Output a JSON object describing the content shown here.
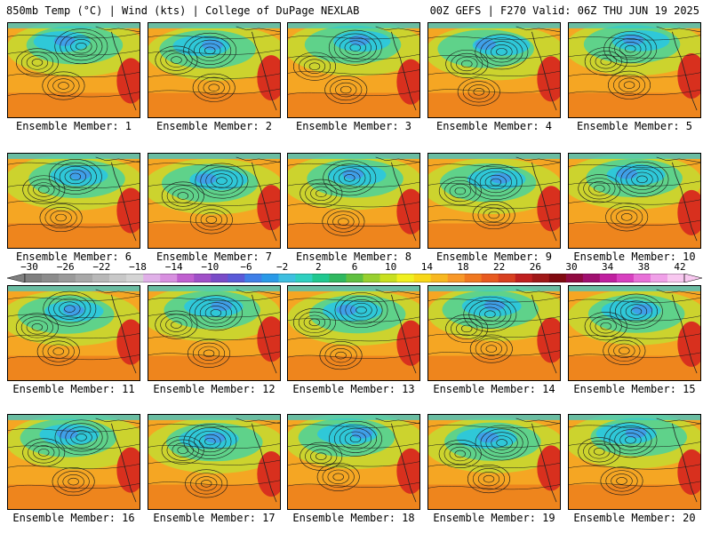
{
  "header": {
    "left": "850mb Temp (°C) | Wind (kts) | College of DuPage NEXLAB",
    "right": "00Z GEFS | F270 Valid: 06Z THU JUN 19 2025"
  },
  "panels": [
    {
      "label": "Ensemble Member: 1"
    },
    {
      "label": "Ensemble Member: 2"
    },
    {
      "label": "Ensemble Member: 3"
    },
    {
      "label": "Ensemble Member: 4"
    },
    {
      "label": "Ensemble Member: 5"
    },
    {
      "label": "Ensemble Member: 6"
    },
    {
      "label": "Ensemble Member: 7"
    },
    {
      "label": "Ensemble Member: 8"
    },
    {
      "label": "Ensemble Member: 9"
    },
    {
      "label": "Ensemble Member: 10"
    },
    {
      "label": "Ensemble Member: 11"
    },
    {
      "label": "Ensemble Member: 12"
    },
    {
      "label": "Ensemble Member: 13"
    },
    {
      "label": "Ensemble Member: 14"
    },
    {
      "label": "Ensemble Member: 15"
    },
    {
      "label": "Ensemble Member: 16"
    },
    {
      "label": "Ensemble Member: 17"
    },
    {
      "label": "Ensemble Member: 18"
    },
    {
      "label": "Ensemble Member: 19"
    },
    {
      "label": "Ensemble Member: 20"
    }
  ],
  "colorbar": {
    "labels": [
      "−30",
      "−26",
      "−22",
      "−18",
      "−14",
      "−10",
      "−6",
      "−2",
      "2",
      "6",
      "10",
      "14",
      "18",
      "22",
      "26",
      "30",
      "34",
      "38",
      "42"
    ],
    "colors": [
      "#7f7f7f",
      "#8c8c8c",
      "#9a9a9a",
      "#a8a8a8",
      "#b8b8b8",
      "#c8c8c8",
      "#d4d4d4",
      "#e0b0e8",
      "#d890e0",
      "#c060d0",
      "#a050c8",
      "#7a4cc8",
      "#5a5ad8",
      "#3f7fe8",
      "#2a9ae8",
      "#3fbfe0",
      "#2fd0c0",
      "#20c890",
      "#30b860",
      "#60c040",
      "#98d030",
      "#c8e020",
      "#f0f020",
      "#f8d818",
      "#f8b820",
      "#f89828",
      "#f07820",
      "#e85a20",
      "#d84020",
      "#c02020",
      "#a01818",
      "#800a10",
      "#900a40",
      "#a01070",
      "#c020a0",
      "#d840c0",
      "#e870d8",
      "#f0a0e8",
      "#f8c8f0"
    ]
  },
  "colors": {
    "ocean_warm": "#f5a623",
    "ocean_hot": "#e86a1a",
    "cool": "#5fd28a",
    "cold": "#2fc8d8",
    "coldest": "#3f9fe8",
    "land_hot": "#d8301e",
    "land_mild": "#c8d830",
    "contour": "#1a1a1a"
  }
}
